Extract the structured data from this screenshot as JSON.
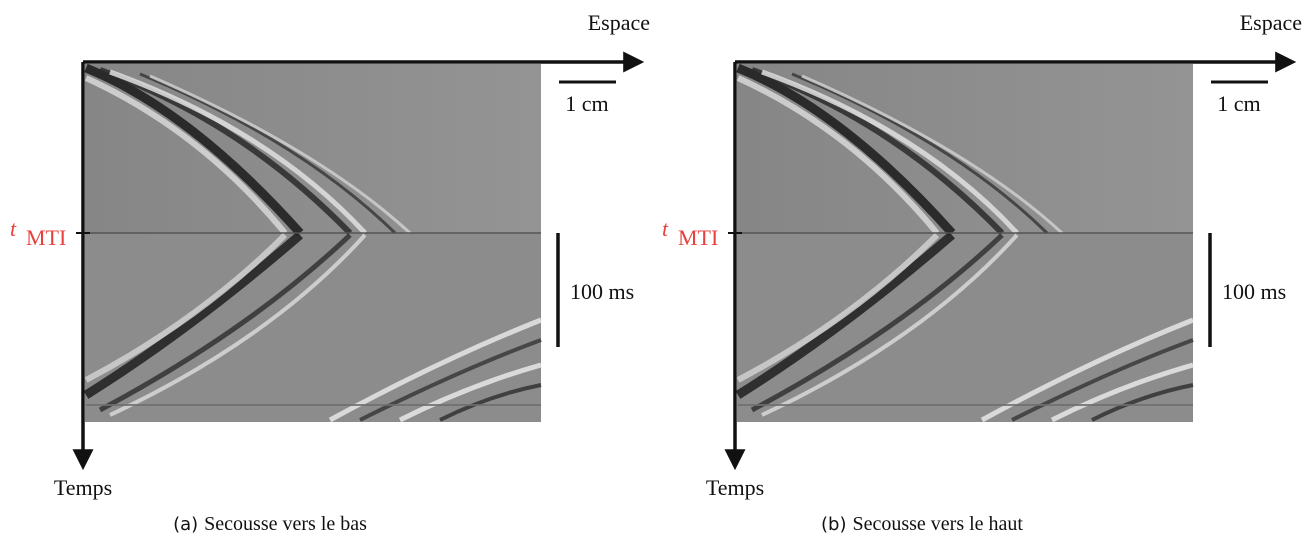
{
  "panels": [
    {
      "x_axis_label": "Espace",
      "y_axis_label": "Temps",
      "t_symbol": "t",
      "t_subscript": "MTI",
      "scale_x": "1 cm",
      "scale_y": "100 ms",
      "caption_tag": "(a)",
      "caption": "Secousse vers le bas"
    },
    {
      "x_axis_label": "Espace",
      "y_axis_label": "Temps",
      "t_symbol": "t",
      "t_subscript": "MTI",
      "scale_x": "1 cm",
      "scale_y": "100 ms",
      "caption_tag": "(b)",
      "caption": "Secousse vers le haut"
    }
  ]
}
